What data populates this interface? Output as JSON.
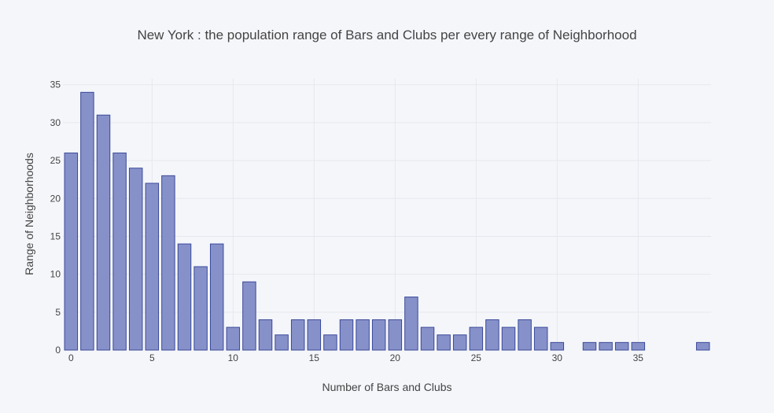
{
  "chart_data": {
    "type": "bar",
    "title": "New York : the population range of Bars and Clubs per every range of Neighborhood",
    "xlabel": "Number of Bars and Clubs",
    "ylabel": "Range of Neighborhoods",
    "x": [
      0,
      1,
      2,
      3,
      4,
      5,
      6,
      7,
      8,
      9,
      10,
      11,
      12,
      13,
      14,
      15,
      16,
      17,
      18,
      19,
      20,
      21,
      22,
      23,
      24,
      25,
      26,
      27,
      28,
      29,
      30,
      31,
      32,
      33,
      34,
      35,
      36,
      37,
      38,
      39
    ],
    "values": [
      26,
      34,
      31,
      26,
      24,
      22,
      23,
      14,
      11,
      14,
      3,
      9,
      4,
      2,
      4,
      4,
      2,
      4,
      4,
      4,
      4,
      7,
      3,
      2,
      2,
      3,
      4,
      3,
      4,
      3,
      1,
      0,
      1,
      1,
      1,
      1,
      0,
      0,
      0,
      1
    ],
    "xlim": [
      -0.5,
      39.5
    ],
    "ylim": [
      0,
      35.8
    ],
    "xticks": [
      0,
      5,
      10,
      15,
      20,
      25,
      30,
      35
    ],
    "yticks": [
      0,
      5,
      10,
      15,
      20,
      25,
      30,
      35
    ],
    "grid": true,
    "colors": {
      "bar_fill": "#8791c9",
      "bar_stroke": "#3a4a9a",
      "background": "#f5f6fa",
      "grid": "#e6e8ef"
    }
  }
}
